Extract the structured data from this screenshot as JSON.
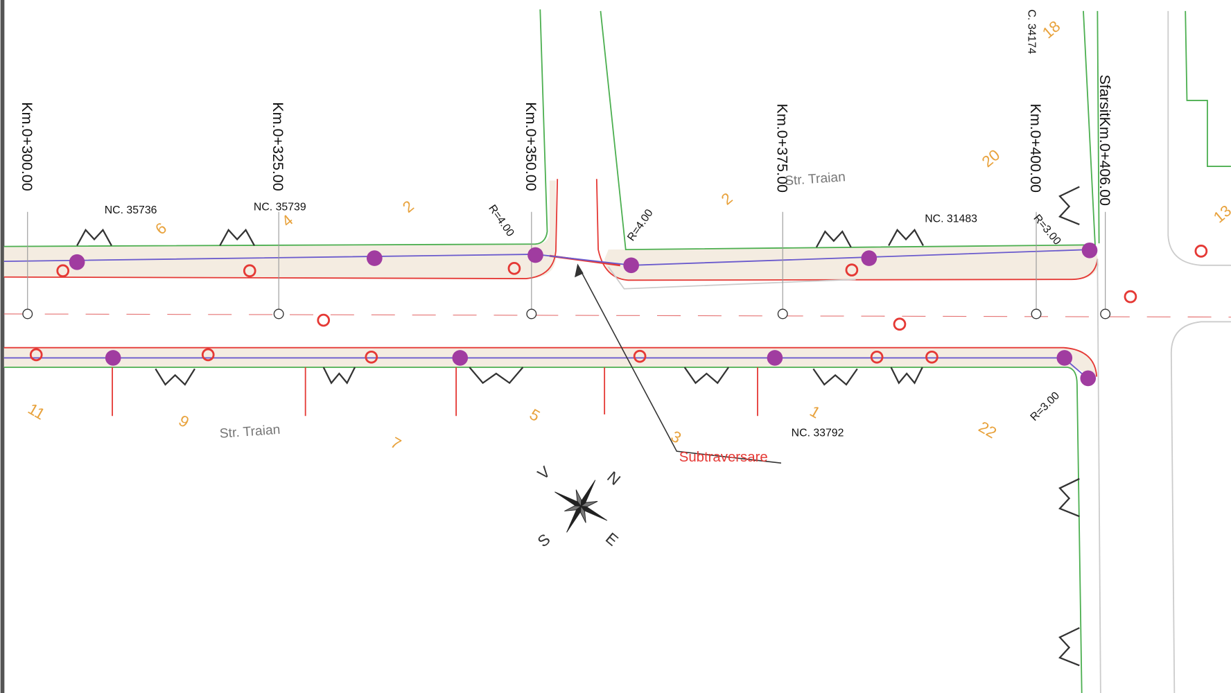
{
  "stations": [
    "Km.0+300.00",
    "Km.0+325.00",
    "Km.0+350.00",
    "Km.0+375.00",
    "Km.0+400.00",
    "SfarsitKm.0+406.00"
  ],
  "parcels": [
    "NC. 35736",
    "NC. 35739",
    "NC. 31483",
    "NC. 33792",
    "C. 34174"
  ],
  "house_numbers": [
    "6",
    "4",
    "2",
    "2",
    "20",
    "18",
    "13",
    "11",
    "9",
    "7",
    "5",
    "3",
    "1",
    "22"
  ],
  "street_names": [
    "Str. Traian",
    "Str. Traian"
  ],
  "radii": [
    "R=4.00",
    "R=4.00",
    "R=3.00",
    "R=3.00"
  ],
  "crossing_label": "Subtraversare",
  "compass": [
    "V",
    "N",
    "S",
    "E"
  ]
}
